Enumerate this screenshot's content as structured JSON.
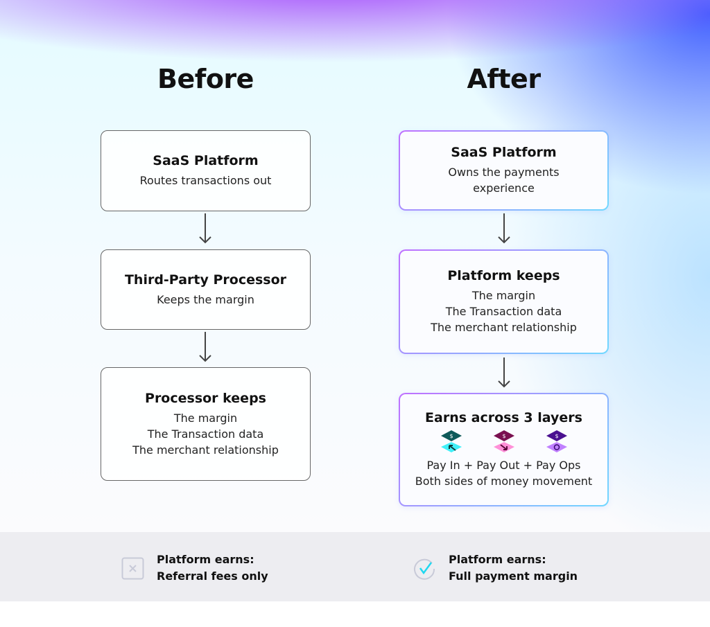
{
  "before": {
    "heading": "Before",
    "boxes": [
      {
        "title": "SaaS Platform",
        "lines": [
          "Routes transactions out"
        ]
      },
      {
        "title": "Third-Party Processor",
        "lines": [
          "Keeps the margin"
        ]
      },
      {
        "title": "Processor keeps",
        "lines": [
          "The margin",
          "The Transaction data",
          "The merchant relationship"
        ]
      }
    ]
  },
  "after": {
    "heading": "After",
    "boxes": [
      {
        "title": "SaaS Platform",
        "lines": [
          "Owns the payments",
          "experience"
        ]
      },
      {
        "title": "Platform keeps",
        "lines": [
          "The margin",
          "The Transaction data",
          "The merchant relationship"
        ]
      },
      {
        "title": "Earns across 3 layers",
        "icons": [
          "pay-in-icon",
          "pay-out-icon",
          "pay-ops-icon"
        ],
        "lines": [
          "Pay In + Pay Out + Pay Ops",
          "Both sides of money movement"
        ]
      }
    ]
  },
  "footer": {
    "before": {
      "icon": "x-icon",
      "line1": "Platform earns:",
      "line2": "Referral fees only"
    },
    "after": {
      "icon": "check-icon",
      "line1": "Platform earns:",
      "line2": "Full payment margin"
    }
  },
  "colors": {
    "pay_in": "#0f5a5a",
    "pay_out": "#7a1050",
    "pay_ops": "#4a1090",
    "check": "#20d8f0"
  }
}
